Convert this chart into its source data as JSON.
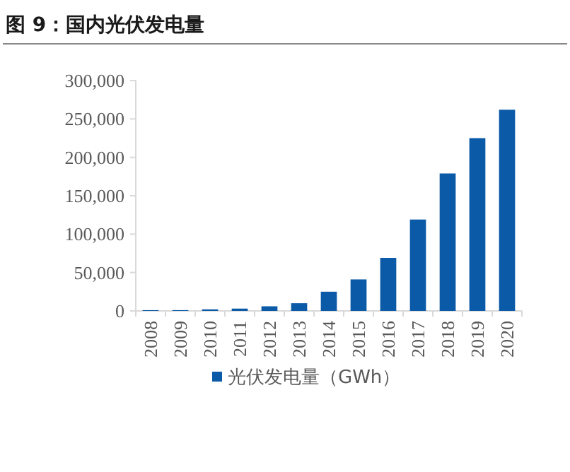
{
  "chart_data": {
    "type": "bar",
    "title": "图 9：国内光伏发电量",
    "categories": [
      "2008",
      "2009",
      "2010",
      "2011",
      "2012",
      "2013",
      "2014",
      "2015",
      "2016",
      "2017",
      "2018",
      "2019",
      "2020"
    ],
    "series": [
      {
        "name": "光伏发电量（GWh）",
        "color": "#0b5aa8",
        "values": [
          1000,
          1000,
          2000,
          3000,
          6000,
          10000,
          25000,
          41000,
          69000,
          119000,
          179000,
          225000,
          262000
        ]
      }
    ],
    "ylim": [
      0,
      300000
    ],
    "yticks": [
      0,
      {
        "value": 50000,
        "label": "50,000"
      },
      {
        "value": 100000,
        "label": "100,000"
      },
      {
        "value": 150000,
        "label": "150,000"
      },
      {
        "value": 200000,
        "label": "200,000"
      },
      {
        "value": 250000,
        "label": "250,000"
      },
      {
        "value": 300000,
        "label": "300,000"
      }
    ],
    "legend": "bottom",
    "grid": false
  }
}
